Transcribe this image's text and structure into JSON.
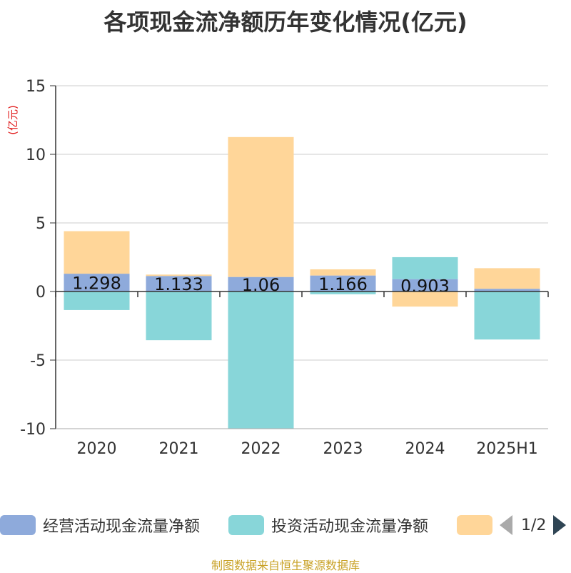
{
  "title": "各项现金流净额历年变化情况(亿元)",
  "unit_label": "(亿元)",
  "legend": {
    "items": [
      {
        "label": "经营活动现金流量净额",
        "color": "#8eaadb"
      },
      {
        "label": "投资活动现金流量净额",
        "color": "#88d6d9"
      },
      {
        "label": "",
        "color": "#ffd699"
      }
    ],
    "page": "1/2"
  },
  "source": "制图数据来自恒生聚源数据库",
  "chart_data": {
    "type": "bar",
    "stacked": true,
    "categories": [
      "2020",
      "2021",
      "2022",
      "2023",
      "2024",
      "2025H1"
    ],
    "series": [
      {
        "name": "经营活动现金流量净额",
        "color": "#8eaadb",
        "values": [
          1.298,
          1.133,
          1.06,
          1.166,
          0.903,
          0.2
        ],
        "labels": [
          "1.298",
          "1.133",
          "1.06",
          "1.166",
          "0.903",
          ""
        ]
      },
      {
        "name": "投资活动现金流量净额",
        "color": "#88d6d9",
        "values": [
          -1.35,
          -3.55,
          -10.0,
          -0.2,
          1.6,
          -3.5
        ]
      },
      {
        "color": "#ffd699",
        "values": [
          3.1,
          0.1,
          10.2,
          0.45,
          -1.1,
          1.5
        ]
      }
    ],
    "ylim": [
      -10,
      15
    ],
    "yticks": [
      15,
      10,
      5,
      0,
      -5,
      -10
    ],
    "grid": true,
    "legend_position": "bottom"
  }
}
